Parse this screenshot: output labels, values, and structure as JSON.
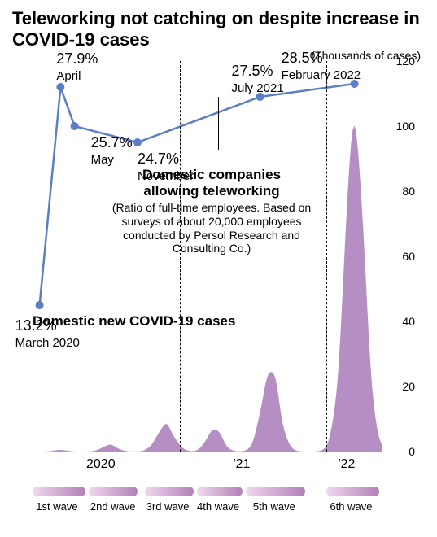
{
  "title": "Teleworking not catching on despite increase in COVID-19 cases",
  "y_axis_label": "(Thousands of cases)",
  "chart": {
    "ylim": [
      0,
      120
    ],
    "ytick_step": 20,
    "yticks": [
      0,
      20,
      40,
      60,
      80,
      100,
      120
    ],
    "background_color": "#ffffff",
    "grid_color": "#dddddd",
    "line_color": "#5b7fc7",
    "marker_color": "#5b7fc7",
    "area_color": "#a87bb8",
    "wave_gradient_start": "#f0d8ef",
    "wave_gradient_end": "#b37fb8",
    "line_points": [
      {
        "x": 0.02,
        "pct": "13.2%",
        "label": "March 2020",
        "y_value": 45
      },
      {
        "x": 0.08,
        "pct": "27.9%",
        "label": "April",
        "y_value": 112
      },
      {
        "x": 0.12,
        "pct": "25.7%",
        "label": "May",
        "y_value": 100
      },
      {
        "x": 0.3,
        "pct": "24.7%",
        "label": "November",
        "y_value": 95
      },
      {
        "x": 0.65,
        "pct": "27.5%",
        "label": "July 2021",
        "y_value": 109
      },
      {
        "x": 0.92,
        "pct": "28.5%",
        "label": "February 2022",
        "y_value": 113
      }
    ],
    "line_title": "Domestic companies allowing teleworking",
    "line_subtitle": "(Ratio of full-time employees. Based on surveys of about 20,000 employees conducted by Persol Research and Consulting Co.)",
    "area_title": "Domestic new COVID-19 cases",
    "x_years": [
      {
        "x": 0.2,
        "label": "2020"
      },
      {
        "x": 0.62,
        "label": "'21"
      },
      {
        "x": 0.92,
        "label": "'22"
      }
    ],
    "year_dividers": [
      0.42,
      0.84
    ],
    "waves": [
      {
        "x_start": 0.0,
        "x_end": 0.15,
        "label": "1st wave"
      },
      {
        "x_start": 0.16,
        "x_end": 0.3,
        "label": "2nd wave"
      },
      {
        "x_start": 0.32,
        "x_end": 0.46,
        "label": "3rd wave"
      },
      {
        "x_start": 0.47,
        "x_end": 0.6,
        "label": "4th wave"
      },
      {
        "x_start": 0.61,
        "x_end": 0.78,
        "label": "5th wave"
      },
      {
        "x_start": 0.84,
        "x_end": 0.99,
        "label": "6th wave"
      }
    ]
  }
}
